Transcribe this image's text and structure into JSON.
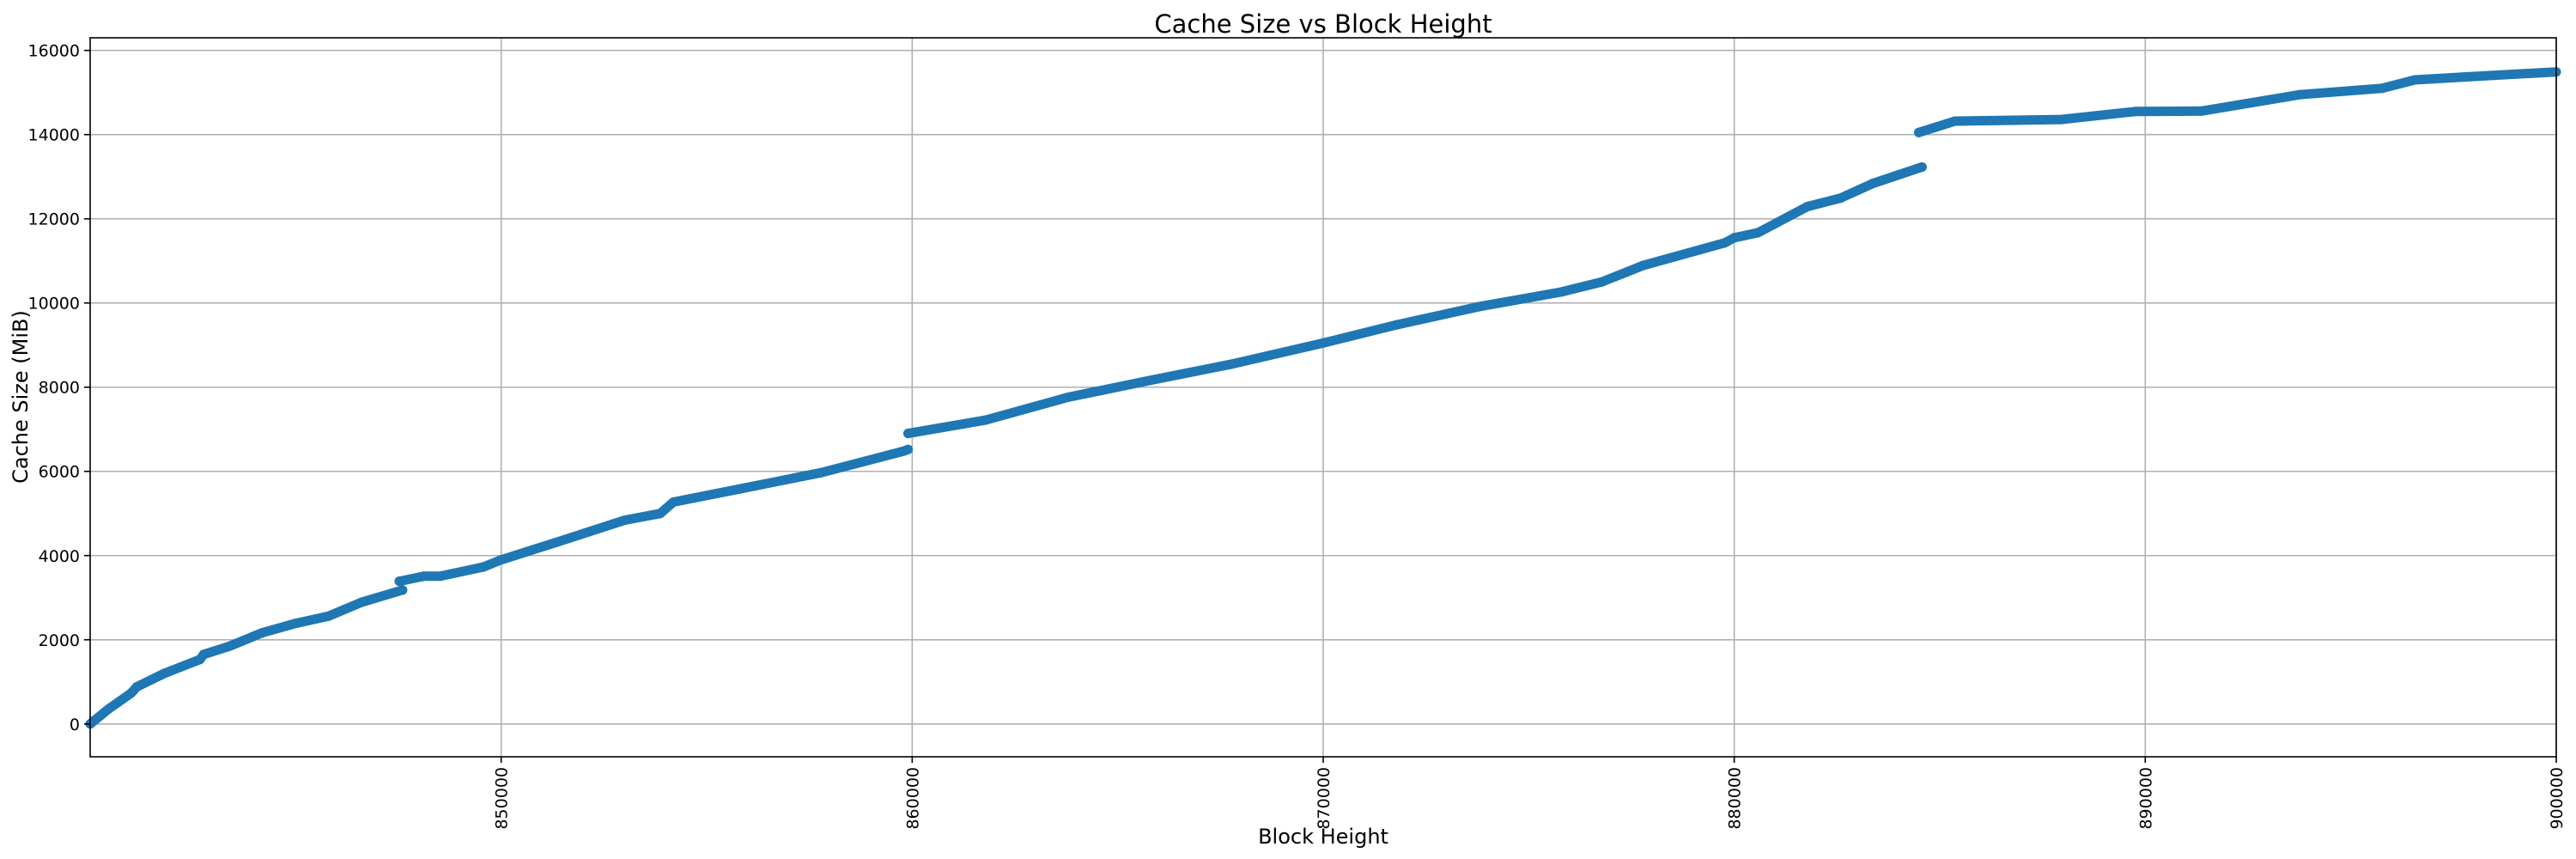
{
  "chart_data": {
    "type": "scatter",
    "title": "Cache Size vs Block Height",
    "xlabel": "Block Height",
    "ylabel": "Cache Size (MiB)",
    "xlim": [
      840000,
      900000
    ],
    "ylim": [
      -780,
      16300
    ],
    "xticks": [
      850000,
      860000,
      870000,
      880000,
      890000,
      900000
    ],
    "xtick_labels": [
      "850000",
      "860000",
      "870000",
      "880000",
      "890000",
      "900000"
    ],
    "yticks": [
      0,
      2000,
      4000,
      6000,
      8000,
      10000,
      12000,
      14000,
      16000
    ],
    "ytick_labels": [
      "0",
      "2000",
      "4000",
      "6000",
      "8000",
      "10000",
      "12000",
      "14000",
      "16000"
    ],
    "grid": true,
    "color": "#1f77b4",
    "segments": [
      [
        [
          840000,
          0
        ],
        [
          840440,
          350
        ],
        [
          841000,
          735
        ],
        [
          841130,
          880
        ],
        [
          841800,
          1200
        ],
        [
          842670,
          1530
        ],
        [
          842760,
          1650
        ],
        [
          843400,
          1850
        ],
        [
          844200,
          2170
        ],
        [
          845000,
          2390
        ],
        [
          845800,
          2560
        ],
        [
          846600,
          2890
        ],
        [
          847600,
          3180
        ]
      ],
      [
        [
          847520,
          3390
        ],
        [
          848120,
          3510
        ],
        [
          848520,
          3510
        ],
        [
          849570,
          3730
        ],
        [
          850000,
          3900
        ],
        [
          851390,
          4330
        ],
        [
          853000,
          4840
        ],
        [
          853870,
          5000
        ],
        [
          854190,
          5270
        ],
        [
          855790,
          5580
        ],
        [
          857790,
          5970
        ],
        [
          859790,
          6480
        ],
        [
          859900,
          6520
        ]
      ],
      [
        [
          859900,
          6900
        ],
        [
          861790,
          7220
        ],
        [
          863790,
          7760
        ],
        [
          865780,
          8160
        ],
        [
          867780,
          8550
        ],
        [
          870000,
          9050
        ],
        [
          871780,
          9480
        ],
        [
          873780,
          9910
        ],
        [
          875780,
          10260
        ],
        [
          876780,
          10500
        ],
        [
          877780,
          10890
        ],
        [
          879770,
          11430
        ],
        [
          880000,
          11550
        ],
        [
          880580,
          11670
        ],
        [
          881780,
          12290
        ],
        [
          882580,
          12490
        ],
        [
          883370,
          12840
        ],
        [
          884570,
          13230
        ]
      ],
      [
        [
          884490,
          14050
        ],
        [
          885370,
          14320
        ],
        [
          887960,
          14360
        ],
        [
          889760,
          14550
        ],
        [
          891370,
          14560
        ],
        [
          893760,
          14950
        ],
        [
          895760,
          15100
        ],
        [
          896560,
          15300
        ],
        [
          897760,
          15370
        ],
        [
          900000,
          15490
        ]
      ]
    ]
  }
}
